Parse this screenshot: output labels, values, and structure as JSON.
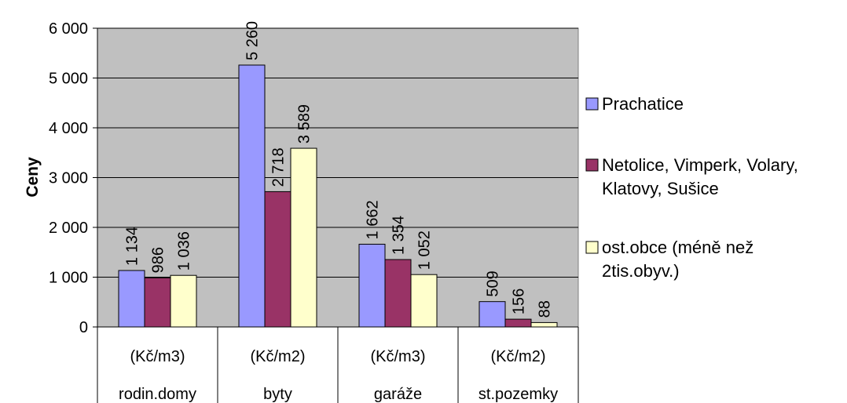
{
  "chart_data": {
    "type": "bar",
    "ylabel": "Ceny",
    "ylim": [
      0,
      6000
    ],
    "yticks": [
      0,
      1000,
      2000,
      3000,
      4000,
      5000,
      6000
    ],
    "ytick_labels": [
      "0",
      "1 000",
      "2 000",
      "3 000",
      "4 000",
      "5 000",
      "6 000"
    ],
    "categories": [
      {
        "unit": "(Kč/m3)",
        "name": "rodin.domy"
      },
      {
        "unit": "(Kč/m2)",
        "name": "byty"
      },
      {
        "unit": "(Kč/m3)",
        "name": "garáže"
      },
      {
        "unit": "(Kč/m2)",
        "name": "st.pozemky"
      }
    ],
    "series": [
      {
        "name": "Prachatice",
        "color": "#9999ff",
        "values": [
          1134,
          5260,
          1662,
          509
        ],
        "labels": [
          "1 134",
          "5 260",
          "1 662",
          "509"
        ]
      },
      {
        "name": "Netolice, Vimperk, Volary, Klatovy, Sušice",
        "color": "#993366",
        "values": [
          986,
          2718,
          1354,
          156
        ],
        "labels": [
          "986",
          "2 718",
          "1 354",
          "156"
        ]
      },
      {
        "name": "ost.obce (méně než 2tis.obyv.)",
        "color": "#ffffcc",
        "values": [
          1036,
          3589,
          1052,
          88
        ],
        "labels": [
          "1 036",
          "3 589",
          "1 052",
          "88"
        ]
      }
    ],
    "legend_lines": [
      [
        "Prachatice"
      ],
      [
        "Netolice, Vimperk, Volary,",
        "Klatovy, Sušice"
      ],
      [
        "ost.obce (méně než",
        "2tis.obyv.)"
      ]
    ],
    "plot_background": "#c0c0c0",
    "grid": true,
    "legend_position": "right"
  }
}
